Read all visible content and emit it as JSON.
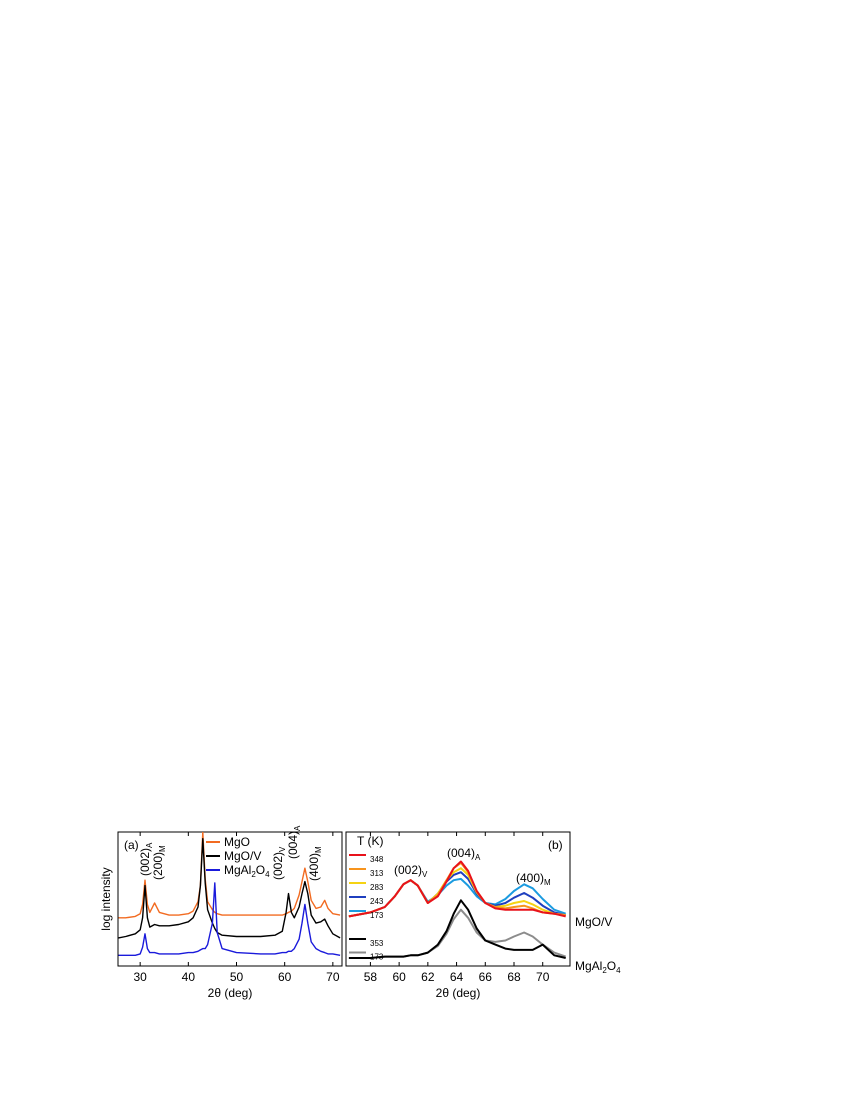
{
  "chart_data": [
    {
      "type": "line",
      "panel_label": "(a)",
      "x_label": "2θ (deg)",
      "y_label": "log intensity",
      "xlim": [
        25.4,
        71.9
      ],
      "ylim": [
        0,
        10
      ],
      "xticks": [
        30,
        40,
        50,
        60,
        70
      ],
      "x": [
        25.5,
        27,
        29,
        30,
        30.5,
        31,
        31.5,
        32,
        33,
        34,
        36,
        38,
        40,
        41,
        42,
        42.5,
        43,
        43.5,
        44,
        45,
        45.5,
        46,
        47,
        50,
        55,
        58,
        59.5,
        60.3,
        60.8,
        61.4,
        62,
        63,
        63.6,
        64.2,
        64.8,
        65.5,
        66.5,
        67.5,
        68.3,
        69,
        70,
        71.5
      ],
      "series": [
        {
          "name": "MgO",
          "color": "#f26b21",
          "values": [
            3.6,
            3.6,
            3.7,
            3.9,
            4.6,
            6.4,
            4.6,
            4.0,
            4.7,
            4.0,
            3.8,
            3.8,
            3.9,
            4.1,
            4.8,
            6.0,
            10,
            6.5,
            4.8,
            4.2,
            4.0,
            3.9,
            3.8,
            3.8,
            3.8,
            3.8,
            3.8,
            3.9,
            4.0,
            4.1,
            4.3,
            5.3,
            6.3,
            7.3,
            6.3,
            4.9,
            4.3,
            4.4,
            4.9,
            4.3,
            3.9,
            3.8
          ]
        },
        {
          "name": "MgO/V",
          "color": "#000000",
          "values": [
            2.1,
            2.2,
            2.4,
            2.7,
            3.6,
            6.0,
            3.6,
            2.9,
            3.1,
            3.0,
            3.0,
            3.1,
            3.3,
            3.6,
            4.4,
            6.0,
            9.5,
            6.2,
            4.2,
            3.2,
            2.8,
            2.5,
            2.3,
            2.2,
            2.2,
            2.3,
            2.6,
            4.0,
            5.4,
            4.0,
            3.6,
            4.4,
            5.4,
            6.3,
            5.4,
            3.8,
            3.2,
            3.3,
            3.5,
            3.0,
            2.4,
            2.1
          ]
        },
        {
          "name": "MgAl2O4",
          "color": "#1a1adb",
          "values": [
            0.8,
            0.8,
            0.8,
            0.9,
            1.4,
            2.4,
            1.3,
            1.0,
            1.0,
            0.9,
            0.9,
            0.9,
            1.0,
            1.0,
            1.1,
            1.2,
            1.3,
            1.3,
            1.6,
            3.2,
            6.2,
            2.5,
            1.3,
            1.0,
            0.9,
            0.9,
            1.0,
            1.0,
            1.1,
            1.1,
            1.3,
            2.0,
            3.2,
            4.6,
            3.2,
            1.8,
            1.3,
            1.1,
            1.0,
            0.9,
            0.9,
            0.8
          ]
        }
      ],
      "annotations": [
        {
          "text": "(002)",
          "sub": "A"
        },
        {
          "text": "(200)",
          "sub": "M"
        },
        {
          "text": "(002)",
          "sub": "V"
        },
        {
          "text": "(004)",
          "sub": "A"
        },
        {
          "text": "(400)",
          "sub": "M"
        }
      ]
    },
    {
      "type": "line",
      "panel_label": "(b)",
      "x_label": "2θ (deg)",
      "legend_title": "T (K)",
      "xlim": [
        56.3,
        71.9
      ],
      "ylim": [
        0,
        10
      ],
      "xticks": [
        58,
        60,
        62,
        64,
        66,
        68,
        70
      ],
      "x": [
        56.5,
        58,
        59,
        59.7,
        60.3,
        60.8,
        61.3,
        62,
        62.7,
        63.3,
        63.8,
        64.3,
        64.8,
        65.4,
        66,
        66.7,
        67.4,
        68,
        68.7,
        69.3,
        70,
        70.8,
        71.6
      ],
      "series": [
        {
          "name": "348",
          "color": "#e8121b",
          "values": [
            3.7,
            4.0,
            4.4,
            5.2,
            6.1,
            6.4,
            6.0,
            4.7,
            5.2,
            6.3,
            7.3,
            7.8,
            7.1,
            5.6,
            4.7,
            4.3,
            4.2,
            4.2,
            4.2,
            4.2,
            4.0,
            3.9,
            3.7
          ]
        },
        {
          "name": "313",
          "color": "#f7941d",
          "values": [
            3.7,
            4.0,
            4.4,
            5.2,
            6.1,
            6.4,
            6.0,
            4.7,
            5.3,
            6.4,
            7.3,
            7.7,
            7.0,
            5.6,
            4.7,
            4.4,
            4.3,
            4.4,
            4.5,
            4.3,
            4.0,
            3.9,
            3.8
          ]
        },
        {
          "name": "283",
          "color": "#f5d313",
          "values": [
            3.7,
            4.0,
            4.4,
            5.2,
            6.1,
            6.4,
            6.0,
            4.7,
            5.4,
            6.4,
            7.0,
            7.3,
            6.8,
            5.5,
            4.7,
            4.4,
            4.5,
            4.7,
            4.85,
            4.6,
            4.2,
            3.9,
            3.8
          ]
        },
        {
          "name": "243",
          "color": "#1f3fbf",
          "values": [
            3.7,
            4.0,
            4.4,
            5.2,
            6.1,
            6.4,
            6.0,
            4.7,
            5.4,
            6.3,
            6.8,
            7.0,
            6.5,
            5.4,
            4.7,
            4.5,
            4.7,
            5.1,
            5.45,
            5.1,
            4.5,
            4.0,
            3.8
          ]
        },
        {
          "name": "173",
          "color": "#1b9be0",
          "values": [
            3.7,
            4.0,
            4.4,
            5.2,
            6.1,
            6.4,
            6.0,
            4.8,
            5.3,
            6.0,
            6.4,
            6.5,
            6.0,
            5.2,
            4.7,
            4.6,
            5.0,
            5.6,
            6.1,
            5.8,
            5.0,
            4.2,
            3.9
          ]
        },
        {
          "name": "353",
          "color": "#000000",
          "values": [
            0.6,
            0.6,
            0.7,
            0.7,
            0.7,
            0.8,
            0.8,
            1.0,
            1.6,
            2.6,
            3.9,
            4.9,
            4.2,
            2.8,
            1.9,
            1.6,
            1.3,
            1.2,
            1.2,
            1.2,
            1.6,
            0.8,
            0.6
          ]
        },
        {
          "name": "173",
          "color": "#8c8c8c",
          "values": [
            0.6,
            0.6,
            0.7,
            0.7,
            0.7,
            0.8,
            0.8,
            1.0,
            1.5,
            2.4,
            3.5,
            4.2,
            3.6,
            2.5,
            1.9,
            1.8,
            1.9,
            2.2,
            2.5,
            2.2,
            1.6,
            1.0,
            0.7
          ]
        }
      ],
      "annotations": [
        {
          "text": "(002)",
          "sub": "V"
        },
        {
          "text": "(004)",
          "sub": "A"
        },
        {
          "text": "(400)",
          "sub": "M"
        }
      ],
      "group_labels": [
        "MgO/V",
        "MgAl2O4"
      ]
    }
  ]
}
